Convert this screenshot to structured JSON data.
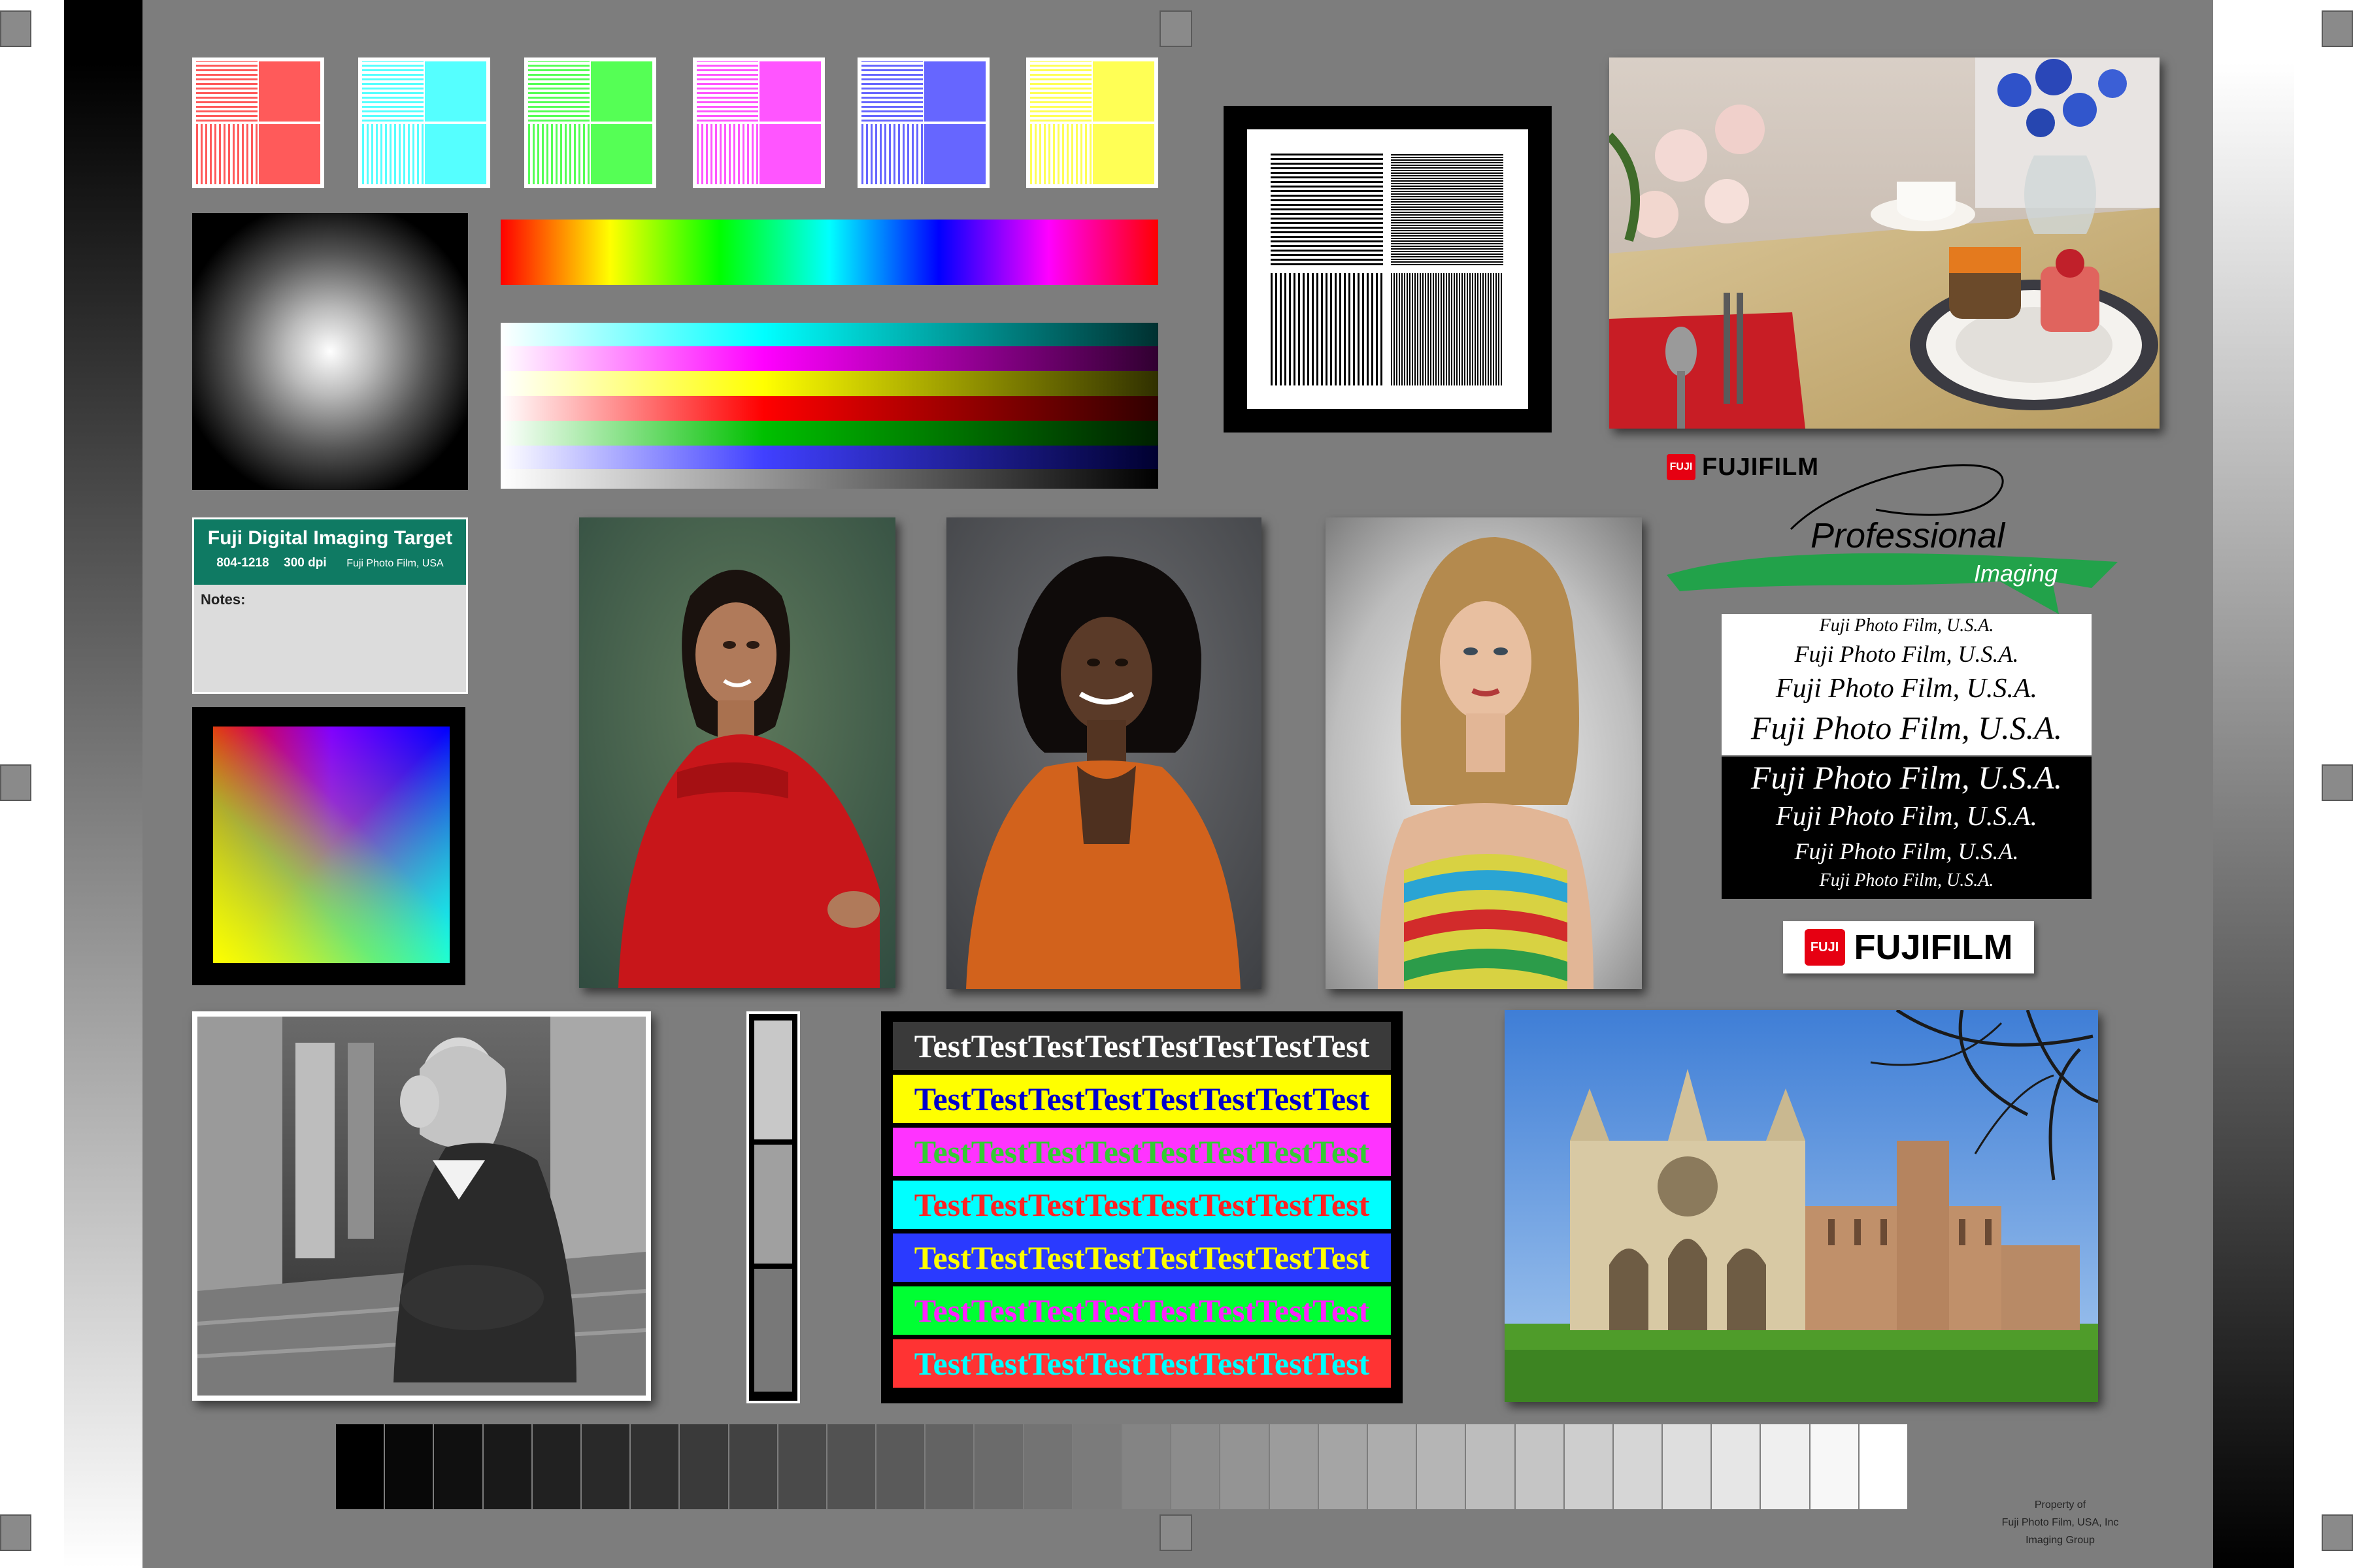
{
  "target": {
    "label_title": "Fuji Digital Imaging Target",
    "label_code": "804-1218",
    "label_dpi": "300 dpi",
    "label_company": "Fuji Photo Film, USA",
    "notes_label": "Notes:"
  },
  "brand": {
    "logo_text": "FUJIFILM",
    "logo_mark": "FUJI",
    "pro_line1": "Professional",
    "pro_line2": "Imaging",
    "green": "#22a24a",
    "red": "#e60012"
  },
  "type_samples": [
    "Fuji Photo Film, U.S.A.",
    "Fuji Photo Film, U.S.A.",
    "Fuji Photo Film, U.S.A.",
    "Fuji Photo Film, U.S.A.",
    "Fuji Photo Film, U.S.A.",
    "Fuji Photo Film, U.S.A.",
    "Fuji Photo Film, U.S.A.",
    "Fuji Photo Film, U.S.A."
  ],
  "test_rows": [
    {
      "text": "TestTestTestTestTestTestTestTest",
      "bg": "#3a3a3a",
      "fg": "#ffffff"
    },
    {
      "text": "TestTestTestTestTestTestTestTest",
      "bg": "#ffff00",
      "fg": "#0000cc"
    },
    {
      "text": "TestTestTestTestTestTestTestTest",
      "bg": "#ff33ff",
      "fg": "#33cc33"
    },
    {
      "text": "TestTestTestTestTestTestTestTest",
      "bg": "#00ffff",
      "fg": "#ff2222"
    },
    {
      "text": "TestTestTestTestTestTestTestTest",
      "bg": "#2a3aff",
      "fg": "#ffff00"
    },
    {
      "text": "TestTestTestTestTestTestTestTest",
      "bg": "#00ff33",
      "fg": "#ff22ff"
    },
    {
      "text": "TestTestTestTestTestTestTestTest",
      "bg": "#ff3333",
      "fg": "#00ffff"
    }
  ],
  "resolution_colors": [
    "#ff5a5a",
    "#55ffff",
    "#55ff55",
    "#ff55ff",
    "#6666ff",
    "#ffff55"
  ],
  "gray_steps": 32,
  "gray_strip": [
    "#c8c8c8",
    "#a0a0a0",
    "#787878"
  ],
  "footer": {
    "line1": "Property of",
    "line2": "Fuji Photo Film, USA, Inc",
    "line3": "Imaging Group"
  },
  "photos": {
    "still_life": "still-life-table",
    "portrait1": "portrait-red-sweater",
    "portrait2": "portrait-orange-cardigan",
    "portrait3": "portrait-blonde",
    "bw_portrait": "bw-portrait-steps",
    "cathedral": "cathedral"
  }
}
